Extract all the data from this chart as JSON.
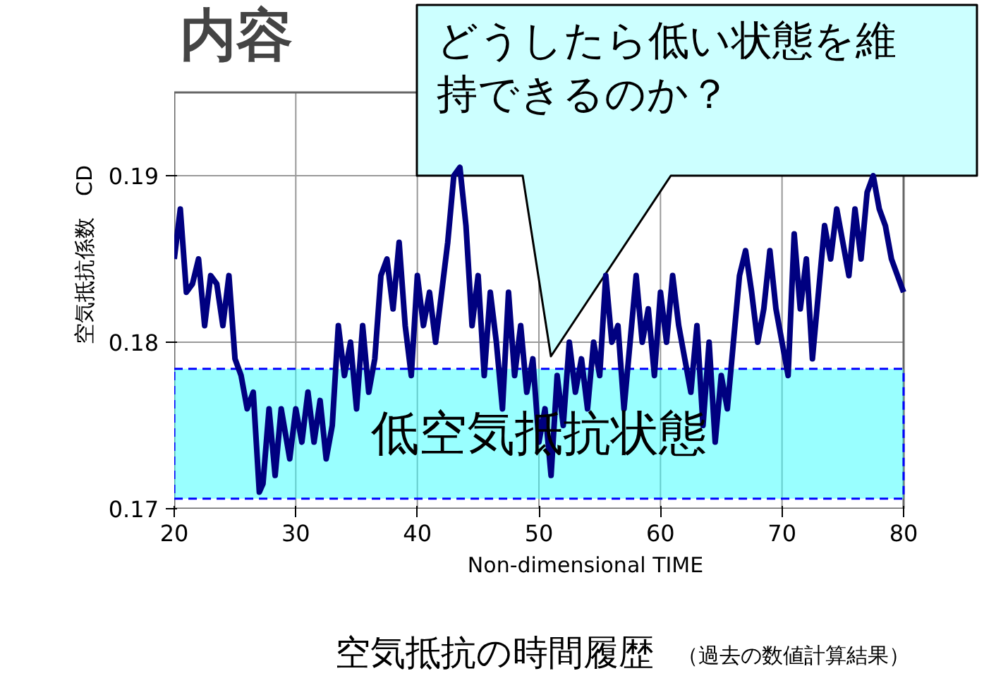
{
  "chart_data": {
    "type": "line",
    "title": "内容",
    "xlabel": "Non-dimensional TIME",
    "ylabel": "空気抵抗係数　CD",
    "bands": [
      {
        "axis": "y",
        "from": 0.1706,
        "to": 0.1784,
        "label": "低空気抵抗状態",
        "color": "#33ffff"
      }
    ],
    "xlim": [
      20,
      80
    ],
    "ylim": [
      0.17,
      0.195
    ],
    "xticks": [
      20,
      30,
      40,
      50,
      60,
      70,
      80
    ],
    "yticks": [
      0.17,
      0.18,
      0.19
    ],
    "grid": true,
    "line_style": "solid",
    "marker": "none",
    "x": [
      20,
      20.5,
      21,
      21.5,
      22,
      22.5,
      23,
      23.5,
      24,
      24.5,
      25,
      25.5,
      26,
      26.5,
      27,
      27.3,
      27.8,
      28.3,
      28.8,
      29.5,
      30,
      30.5,
      31,
      31.5,
      32,
      32.5,
      33,
      33.5,
      34,
      34.5,
      35,
      35.5,
      36,
      36.5,
      37,
      37.5,
      38,
      38.5,
      39,
      39.5,
      40,
      40.5,
      41,
      41.5,
      42,
      42.5,
      43,
      43.5,
      44,
      44.5,
      45,
      45.5,
      46,
      46.5,
      47,
      47.5,
      48,
      48.5,
      49,
      49.5,
      50,
      50.5,
      51,
      51.5,
      52,
      52.5,
      53,
      53.5,
      54,
      54.5,
      55,
      55.5,
      56,
      56.5,
      57,
      57.5,
      58,
      58.5,
      59,
      59.5,
      60,
      60.5,
      61,
      61.5,
      62,
      62.5,
      63,
      63.5,
      64,
      64.5,
      65,
      65.5,
      66,
      66.5,
      67,
      67.5,
      68,
      68.5,
      69,
      69.5,
      70,
      70.5,
      71,
      71.5,
      72,
      72.5,
      73,
      73.5,
      74,
      74.5,
      75,
      75.5,
      76,
      76.5,
      77,
      77.5,
      78,
      78.5,
      79,
      79.5,
      80
    ],
    "series": [
      {
        "color": "#000080",
        "values": [
          0.185,
          0.188,
          0.183,
          0.1835,
          0.185,
          0.181,
          0.184,
          0.1835,
          0.181,
          0.184,
          0.179,
          0.178,
          0.176,
          0.177,
          0.171,
          0.1715,
          0.176,
          0.172,
          0.176,
          0.173,
          0.176,
          0.174,
          0.177,
          0.174,
          0.1765,
          0.173,
          0.175,
          0.181,
          0.178,
          0.18,
          0.176,
          0.181,
          0.177,
          0.179,
          0.184,
          0.185,
          0.182,
          0.186,
          0.181,
          0.178,
          0.184,
          0.181,
          0.183,
          0.18,
          0.183,
          0.186,
          0.19,
          0.1905,
          0.187,
          0.181,
          0.184,
          0.178,
          0.183,
          0.18,
          0.176,
          0.183,
          0.178,
          0.181,
          0.177,
          0.179,
          0.174,
          0.176,
          0.172,
          0.178,
          0.175,
          0.18,
          0.177,
          0.179,
          0.176,
          0.18,
          0.178,
          0.184,
          0.18,
          0.181,
          0.176,
          0.18,
          0.184,
          0.18,
          0.182,
          0.178,
          0.183,
          0.18,
          0.184,
          0.181,
          0.179,
          0.177,
          0.181,
          0.175,
          0.18,
          0.174,
          0.178,
          0.176,
          0.18,
          0.184,
          0.1855,
          0.183,
          0.18,
          0.182,
          0.1855,
          0.182,
          0.18,
          0.178,
          0.1865,
          0.182,
          0.185,
          0.179,
          0.183,
          0.187,
          0.185,
          0.188,
          0.186,
          0.184,
          0.188,
          0.185,
          0.189,
          0.19,
          0.188,
          0.187,
          0.185,
          0.184,
          0.183
        ]
      }
    ],
    "annotations": [
      "どうしたら低い状態を維持できるのか？",
      "空気抵抗の時間履歴",
      "（過去の数値計算結果）"
    ]
  }
}
